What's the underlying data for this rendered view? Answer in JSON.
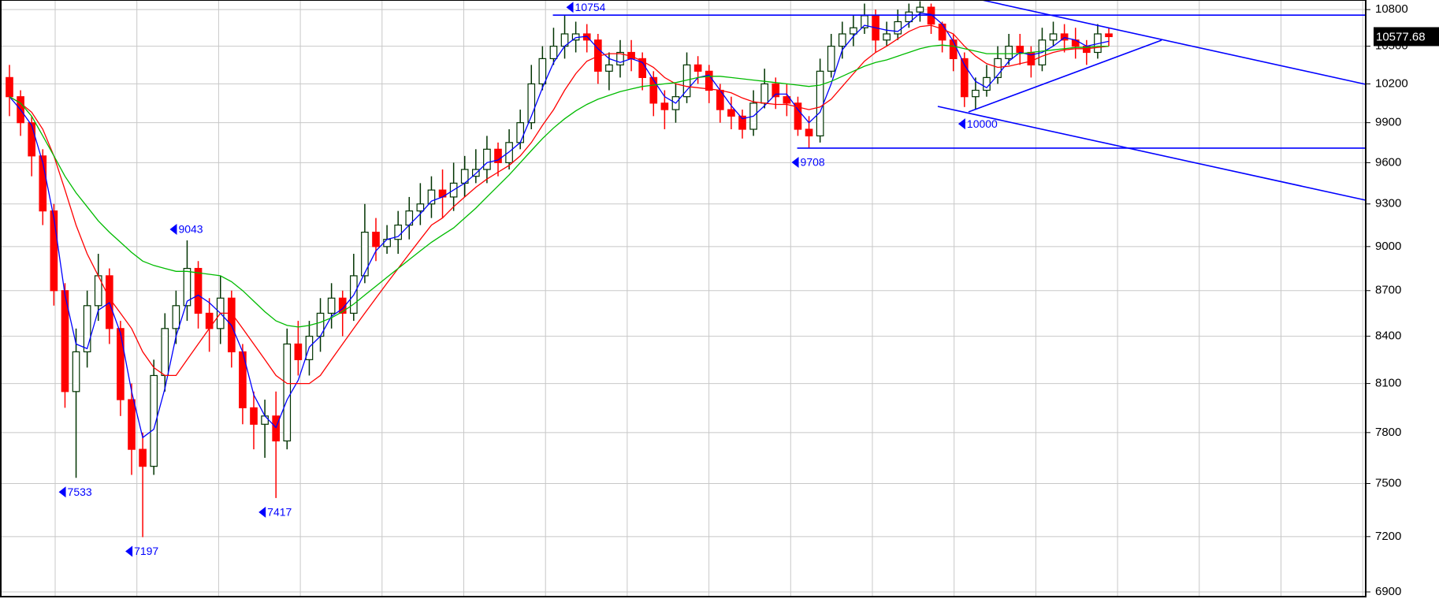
{
  "chart_data": {
    "type": "candlestick",
    "log_scale": true,
    "grid": true,
    "ylim": [
      6875,
      10880
    ],
    "yticks": [
      6900,
      7200,
      7500,
      7800,
      8100,
      8400,
      8700,
      9000,
      9300,
      9600,
      9900,
      10200,
      10500,
      10800
    ],
    "up_color": "#003300",
    "down_color": "#ff0000",
    "annotation_color": "#0000ff",
    "open": [
      10250,
      10100,
      9900,
      9650,
      9250,
      8700,
      8050,
      8300,
      8600,
      8800,
      8450,
      8000,
      7700,
      7600,
      8150,
      8450,
      8600,
      8850,
      8550,
      8450,
      8650,
      8300,
      7950,
      7850,
      7900,
      7750,
      8350,
      8250,
      8400,
      8550,
      8650,
      8550,
      8800,
      9100,
      9000,
      9050,
      9150,
      9250,
      9300,
      9400,
      9350,
      9450,
      9500,
      9550,
      9700,
      9600,
      9750,
      9900,
      10200,
      10400,
      10500,
      10550,
      10600,
      10550,
      10300,
      10350,
      10450,
      10400,
      10250,
      10050,
      10000,
      10100,
      10350,
      10300,
      10150,
      10000,
      9950,
      9850,
      10050,
      10200,
      10100,
      10050,
      9850,
      9800,
      10300,
      10500,
      10600,
      10650,
      10750,
      10550,
      10600,
      10700,
      10780,
      10820,
      10680,
      10550,
      10400,
      10100,
      10150,
      10250,
      10400,
      10500,
      10450,
      10350,
      10550,
      10600,
      10550,
      10500,
      10450,
      10600
    ],
    "high": [
      10350,
      10150,
      9950,
      9700,
      9300,
      8750,
      8450,
      8700,
      8950,
      8850,
      8500,
      8100,
      7800,
      8250,
      8550,
      8700,
      9043,
      8900,
      8650,
      8800,
      8700,
      8350,
      8050,
      8000,
      8050,
      8450,
      8500,
      8500,
      8650,
      8750,
      8700,
      8950,
      9300,
      9200,
      9150,
      9250,
      9350,
      9450,
      9500,
      9550,
      9600,
      9650,
      9700,
      9800,
      9750,
      9850,
      10000,
      10350,
      10500,
      10650,
      10754,
      10700,
      10680,
      10600,
      10450,
      10550,
      10550,
      10450,
      10300,
      10150,
      10200,
      10450,
      10420,
      10350,
      10200,
      10100,
      10000,
      10150,
      10320,
      10250,
      10200,
      10100,
      9950,
      10400,
      10600,
      10700,
      10750,
      10850,
      10800,
      10700,
      10800,
      10850,
      10870,
      10850,
      10700,
      10600,
      10450,
      10250,
      10350,
      10500,
      10600,
      10600,
      10500,
      10650,
      10700,
      10680,
      10650,
      10550,
      10680,
      10650
    ],
    "low": [
      9950,
      9800,
      9500,
      9150,
      8600,
      7950,
      7533,
      8200,
      8500,
      8350,
      7900,
      7550,
      7197,
      7550,
      8050,
      8350,
      8500,
      8450,
      8300,
      8350,
      8200,
      7850,
      7700,
      7650,
      7417,
      7700,
      8150,
      8150,
      8300,
      8450,
      8400,
      8500,
      8750,
      8900,
      8950,
      8950,
      9050,
      9150,
      9200,
      9200,
      9250,
      9350,
      9450,
      9450,
      9500,
      9550,
      9700,
      9850,
      10150,
      10350,
      10400,
      10450,
      10450,
      10200,
      10150,
      10250,
      10300,
      10150,
      9950,
      9850,
      9900,
      10050,
      10200,
      10050,
      9900,
      9850,
      9780,
      9800,
      10010,
      10005,
      9950,
      9800,
      9708,
      9750,
      10250,
      10400,
      10500,
      10600,
      10450,
      10500,
      10550,
      10650,
      10700,
      10600,
      10450,
      10300,
      10020,
      10000,
      10100,
      10200,
      10350,
      10350,
      10250,
      10300,
      10500,
      10450,
      10400,
      10350,
      10400,
      10500
    ],
    "close": [
      10100,
      9900,
      9650,
      9250,
      8700,
      8050,
      8300,
      8600,
      8800,
      8450,
      8000,
      7700,
      7600,
      8150,
      8450,
      8600,
      8850,
      8550,
      8450,
      8650,
      8300,
      7950,
      7850,
      7900,
      7750,
      8350,
      8250,
      8400,
      8550,
      8650,
      8550,
      8800,
      9100,
      9000,
      9050,
      9150,
      9250,
      9300,
      9400,
      9350,
      9450,
      9550,
      9550,
      9700,
      9600,
      9750,
      9900,
      10200,
      10400,
      10500,
      10600,
      10600,
      10550,
      10300,
      10350,
      10450,
      10400,
      10250,
      10050,
      10000,
      10100,
      10350,
      10300,
      10150,
      10000,
      9950,
      9850,
      10050,
      10200,
      10100,
      10050,
      9850,
      9800,
      10300,
      10500,
      10600,
      10650,
      10750,
      10550,
      10600,
      10700,
      10780,
      10820,
      10680,
      10550,
      10400,
      10100,
      10150,
      10250,
      10400,
      10500,
      10450,
      10350,
      10550,
      10600,
      10550,
      10500,
      10450,
      10600,
      10577.68
    ],
    "moving_averages": [
      {
        "color": "#0000ff",
        "values": [
          10100,
          10000,
          9880,
          9600,
          9200,
          8670,
          8350,
          8320,
          8570,
          8620,
          8420,
          8050,
          7770,
          7820,
          8070,
          8400,
          8630,
          8670,
          8620,
          8550,
          8470,
          8300,
          8030,
          7900,
          7830,
          8000,
          8120,
          8330,
          8400,
          8530,
          8580,
          8670,
          8820,
          8970,
          9050,
          9070,
          9150,
          9230,
          9320,
          9350,
          9400,
          9450,
          9520,
          9600,
          9620,
          9680,
          9750,
          9950,
          10170,
          10370,
          10500,
          10570,
          10580,
          10480,
          10400,
          10370,
          10400,
          10370,
          10230,
          10100,
          10050,
          10150,
          10250,
          10270,
          10150,
          10030,
          9930,
          9950,
          10030,
          10120,
          10120,
          10000,
          9900,
          9980,
          10200,
          10470,
          10580,
          10670,
          10650,
          10630,
          10620,
          10690,
          10770,
          10760,
          10680,
          10540,
          10350,
          10220,
          10170,
          10270,
          10380,
          10450,
          10430,
          10450,
          10500,
          10570,
          10550,
          10500,
          10520,
          10540
        ]
      },
      {
        "color": "#ff0000",
        "values": [
          10100,
          10050,
          9980,
          9850,
          9650,
          9400,
          9150,
          8950,
          8800,
          8650,
          8550,
          8450,
          8300,
          8200,
          8150,
          8150,
          8250,
          8350,
          8450,
          8550,
          8550,
          8450,
          8350,
          8250,
          8150,
          8100,
          8100,
          8100,
          8150,
          8250,
          8350,
          8450,
          8550,
          8650,
          8750,
          8850,
          8950,
          9050,
          9150,
          9200,
          9280,
          9350,
          9420,
          9480,
          9530,
          9580,
          9650,
          9750,
          9880,
          10000,
          10150,
          10280,
          10380,
          10420,
          10440,
          10440,
          10420,
          10380,
          10330,
          10250,
          10200,
          10180,
          10170,
          10160,
          10150,
          10130,
          10090,
          10060,
          10050,
          10040,
          10040,
          10020,
          10000,
          10020,
          10080,
          10180,
          10280,
          10380,
          10450,
          10500,
          10560,
          10620,
          10660,
          10670,
          10640,
          10600,
          10500,
          10420,
          10360,
          10330,
          10340,
          10360,
          10380,
          10420,
          10450,
          10470,
          10480,
          10480,
          10490,
          10500
        ]
      },
      {
        "color": "#00bb00",
        "values": [
          10100,
          10050,
          9950,
          9800,
          9650,
          9500,
          9380,
          9280,
          9180,
          9100,
          9030,
          8960,
          8900,
          8870,
          8850,
          8830,
          8830,
          8820,
          8810,
          8800,
          8760,
          8700,
          8630,
          8560,
          8500,
          8470,
          8460,
          8470,
          8490,
          8520,
          8560,
          8610,
          8670,
          8730,
          8790,
          8850,
          8910,
          8970,
          9030,
          9080,
          9130,
          9200,
          9270,
          9350,
          9430,
          9510,
          9600,
          9690,
          9780,
          9860,
          9930,
          9990,
          10040,
          10080,
          10110,
          10140,
          10160,
          10180,
          10190,
          10200,
          10210,
          10230,
          10250,
          10260,
          10260,
          10250,
          10240,
          10230,
          10220,
          10210,
          10200,
          10190,
          10180,
          10190,
          10220,
          10260,
          10300,
          10340,
          10370,
          10390,
          10420,
          10450,
          10480,
          10500,
          10510,
          10500,
          10480,
          10460,
          10440,
          10440,
          10440,
          10440,
          10450,
          10460,
          10470,
          10480,
          10490,
          10490,
          10500,
          10500
        ]
      }
    ],
    "annotations": [
      {
        "value": 10754,
        "at": "high",
        "line": true
      },
      {
        "value": 9043,
        "at": "high"
      },
      {
        "value": 7533,
        "at": "low"
      },
      {
        "value": 7197,
        "at": "low"
      },
      {
        "value": 7417,
        "at": "low"
      },
      {
        "value": 9708,
        "at": "low",
        "line": true
      },
      {
        "value": 10000,
        "at": "low"
      }
    ]
  }
}
